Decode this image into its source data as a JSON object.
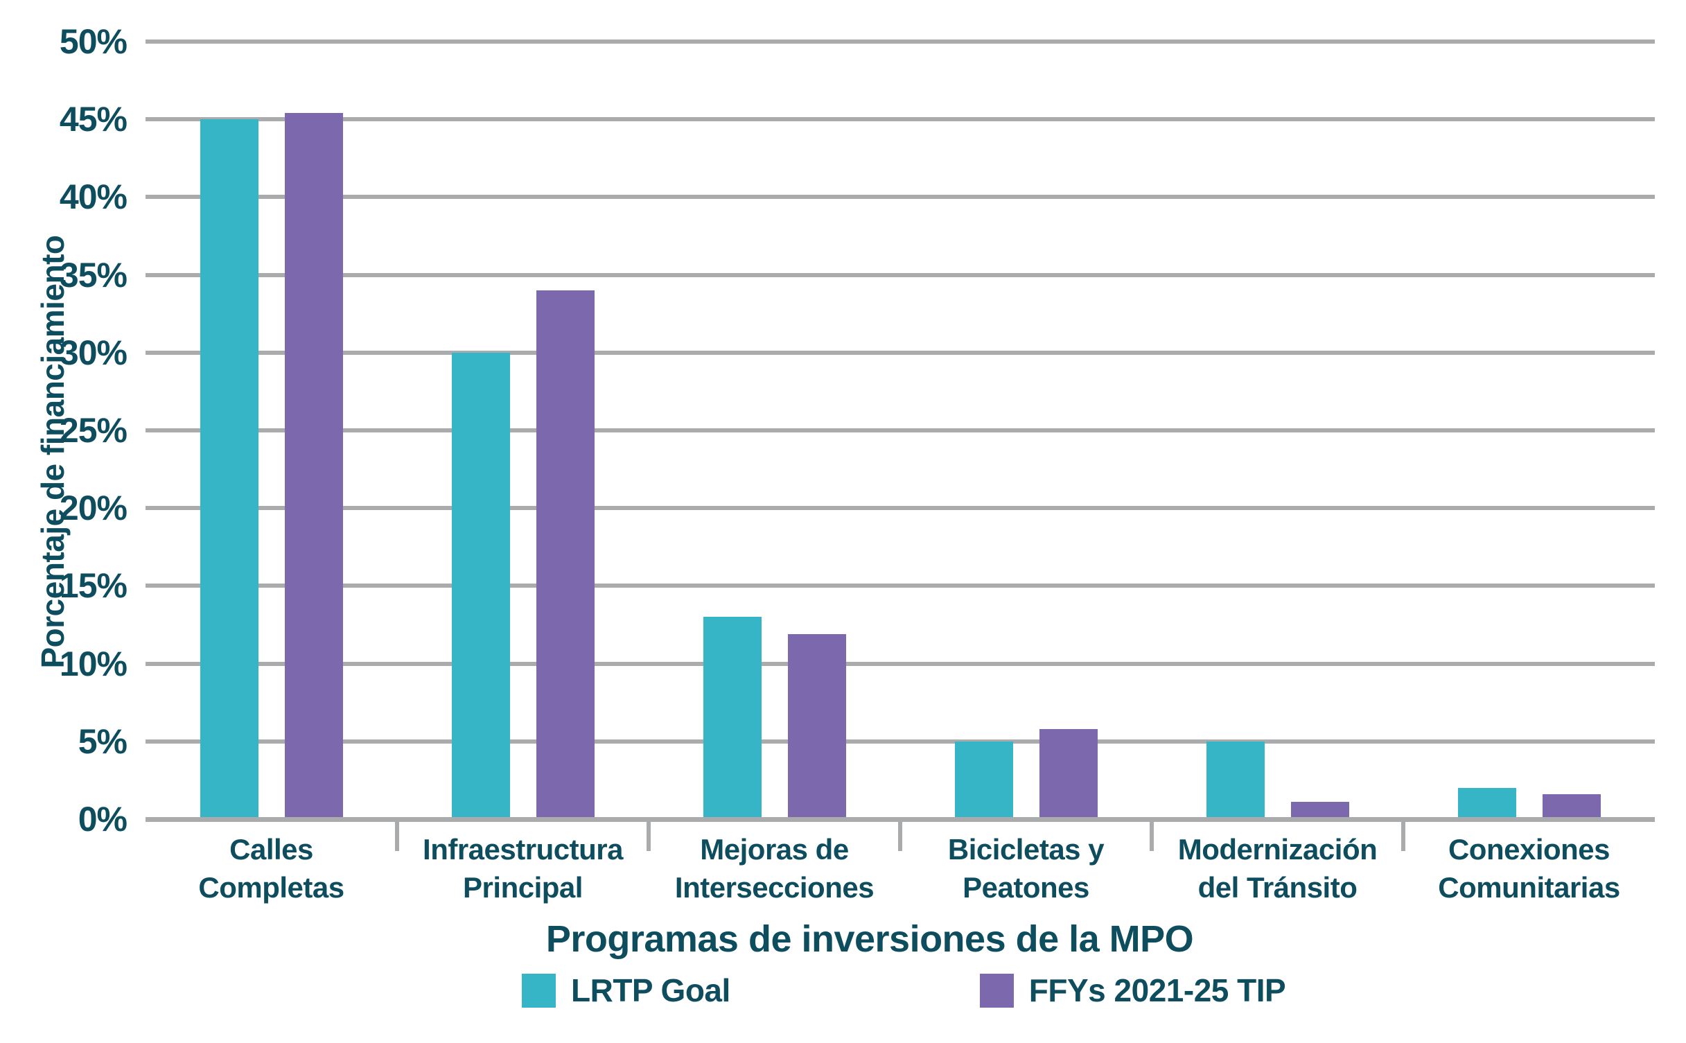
{
  "colors": {
    "teal": "#36b5c7",
    "purple": "#7b68ad",
    "text": "#0e4d5e",
    "grid": "#a9abac"
  },
  "y_axis": {
    "title": "Porcentaje de financiamiento",
    "tick_labels": [
      "0%",
      "5%",
      "10%",
      "15%",
      "20%",
      "25%",
      "30%",
      "35%",
      "40%",
      "45%",
      "50%"
    ]
  },
  "x_axis": {
    "title": "Programas de inversiones de la MPO"
  },
  "legend": {
    "items": [
      {
        "label": "LRTP Goal",
        "color": "#36b5c7"
      },
      {
        "label": "FFYs 2021-25 TIP",
        "color": "#7b68ad"
      }
    ]
  },
  "chart_data": {
    "type": "bar",
    "categories": [
      "Calles\nCompletas",
      "Infraestructura\nPrincipal",
      "Mejoras de\nIntersecciones",
      "Bicicletas y\nPeatones",
      "Modernización\ndel Tránsito",
      "Conexiones\nComunitarias"
    ],
    "series": [
      {
        "name": "LRTP Goal",
        "color": "#36b5c7",
        "values": [
          45,
          30,
          13,
          5,
          5,
          2
        ]
      },
      {
        "name": "FFYs 2021-25 TIP",
        "color": "#7b68ad",
        "values": [
          45.4,
          34,
          11.9,
          5.8,
          1.1,
          1.6
        ]
      }
    ],
    "title": "",
    "xlabel": "Programas de inversiones de la MPO",
    "ylabel": "Porcentaje de financiamiento",
    "ylim": [
      0,
      50
    ],
    "ytick_step": 5,
    "grid": true,
    "legend_position": "bottom"
  }
}
